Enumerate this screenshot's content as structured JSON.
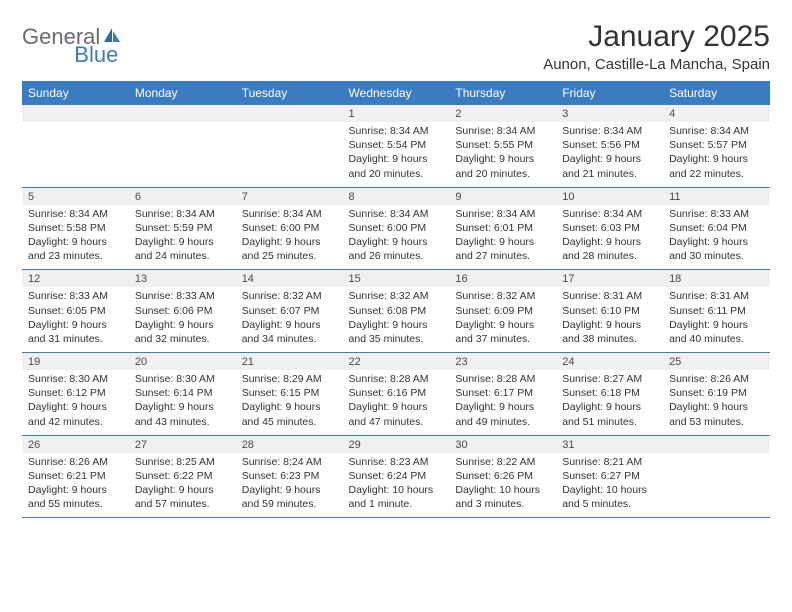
{
  "logo": {
    "word1": "General",
    "word2": "Blue"
  },
  "title": "January 2025",
  "location": "Aunon, Castille-La Mancha, Spain",
  "colors": {
    "header_bg": "#3b7bbf",
    "header_text": "#ffffff",
    "daynum_bg": "#eef0f2",
    "body_text": "#333333",
    "logo_gray": "#6b6b6b",
    "logo_blue": "#3b7bbf"
  },
  "day_headers": [
    "Sunday",
    "Monday",
    "Tuesday",
    "Wednesday",
    "Thursday",
    "Friday",
    "Saturday"
  ],
  "weeks": [
    {
      "days": [
        {
          "n": "",
          "lines": []
        },
        {
          "n": "",
          "lines": []
        },
        {
          "n": "",
          "lines": []
        },
        {
          "n": "1",
          "lines": [
            "Sunrise: 8:34 AM",
            "Sunset: 5:54 PM",
            "Daylight: 9 hours and 20 minutes."
          ]
        },
        {
          "n": "2",
          "lines": [
            "Sunrise: 8:34 AM",
            "Sunset: 5:55 PM",
            "Daylight: 9 hours and 20 minutes."
          ]
        },
        {
          "n": "3",
          "lines": [
            "Sunrise: 8:34 AM",
            "Sunset: 5:56 PM",
            "Daylight: 9 hours and 21 minutes."
          ]
        },
        {
          "n": "4",
          "lines": [
            "Sunrise: 8:34 AM",
            "Sunset: 5:57 PM",
            "Daylight: 9 hours and 22 minutes."
          ]
        }
      ]
    },
    {
      "days": [
        {
          "n": "5",
          "lines": [
            "Sunrise: 8:34 AM",
            "Sunset: 5:58 PM",
            "Daylight: 9 hours and 23 minutes."
          ]
        },
        {
          "n": "6",
          "lines": [
            "Sunrise: 8:34 AM",
            "Sunset: 5:59 PM",
            "Daylight: 9 hours and 24 minutes."
          ]
        },
        {
          "n": "7",
          "lines": [
            "Sunrise: 8:34 AM",
            "Sunset: 6:00 PM",
            "Daylight: 9 hours and 25 minutes."
          ]
        },
        {
          "n": "8",
          "lines": [
            "Sunrise: 8:34 AM",
            "Sunset: 6:00 PM",
            "Daylight: 9 hours and 26 minutes."
          ]
        },
        {
          "n": "9",
          "lines": [
            "Sunrise: 8:34 AM",
            "Sunset: 6:01 PM",
            "Daylight: 9 hours and 27 minutes."
          ]
        },
        {
          "n": "10",
          "lines": [
            "Sunrise: 8:34 AM",
            "Sunset: 6:03 PM",
            "Daylight: 9 hours and 28 minutes."
          ]
        },
        {
          "n": "11",
          "lines": [
            "Sunrise: 8:33 AM",
            "Sunset: 6:04 PM",
            "Daylight: 9 hours and 30 minutes."
          ]
        }
      ]
    },
    {
      "days": [
        {
          "n": "12",
          "lines": [
            "Sunrise: 8:33 AM",
            "Sunset: 6:05 PM",
            "Daylight: 9 hours and 31 minutes."
          ]
        },
        {
          "n": "13",
          "lines": [
            "Sunrise: 8:33 AM",
            "Sunset: 6:06 PM",
            "Daylight: 9 hours and 32 minutes."
          ]
        },
        {
          "n": "14",
          "lines": [
            "Sunrise: 8:32 AM",
            "Sunset: 6:07 PM",
            "Daylight: 9 hours and 34 minutes."
          ]
        },
        {
          "n": "15",
          "lines": [
            "Sunrise: 8:32 AM",
            "Sunset: 6:08 PM",
            "Daylight: 9 hours and 35 minutes."
          ]
        },
        {
          "n": "16",
          "lines": [
            "Sunrise: 8:32 AM",
            "Sunset: 6:09 PM",
            "Daylight: 9 hours and 37 minutes."
          ]
        },
        {
          "n": "17",
          "lines": [
            "Sunrise: 8:31 AM",
            "Sunset: 6:10 PM",
            "Daylight: 9 hours and 38 minutes."
          ]
        },
        {
          "n": "18",
          "lines": [
            "Sunrise: 8:31 AM",
            "Sunset: 6:11 PM",
            "Daylight: 9 hours and 40 minutes."
          ]
        }
      ]
    },
    {
      "days": [
        {
          "n": "19",
          "lines": [
            "Sunrise: 8:30 AM",
            "Sunset: 6:12 PM",
            "Daylight: 9 hours and 42 minutes."
          ]
        },
        {
          "n": "20",
          "lines": [
            "Sunrise: 8:30 AM",
            "Sunset: 6:14 PM",
            "Daylight: 9 hours and 43 minutes."
          ]
        },
        {
          "n": "21",
          "lines": [
            "Sunrise: 8:29 AM",
            "Sunset: 6:15 PM",
            "Daylight: 9 hours and 45 minutes."
          ]
        },
        {
          "n": "22",
          "lines": [
            "Sunrise: 8:28 AM",
            "Sunset: 6:16 PM",
            "Daylight: 9 hours and 47 minutes."
          ]
        },
        {
          "n": "23",
          "lines": [
            "Sunrise: 8:28 AM",
            "Sunset: 6:17 PM",
            "Daylight: 9 hours and 49 minutes."
          ]
        },
        {
          "n": "24",
          "lines": [
            "Sunrise: 8:27 AM",
            "Sunset: 6:18 PM",
            "Daylight: 9 hours and 51 minutes."
          ]
        },
        {
          "n": "25",
          "lines": [
            "Sunrise: 8:26 AM",
            "Sunset: 6:19 PM",
            "Daylight: 9 hours and 53 minutes."
          ]
        }
      ]
    },
    {
      "days": [
        {
          "n": "26",
          "lines": [
            "Sunrise: 8:26 AM",
            "Sunset: 6:21 PM",
            "Daylight: 9 hours and 55 minutes."
          ]
        },
        {
          "n": "27",
          "lines": [
            "Sunrise: 8:25 AM",
            "Sunset: 6:22 PM",
            "Daylight: 9 hours and 57 minutes."
          ]
        },
        {
          "n": "28",
          "lines": [
            "Sunrise: 8:24 AM",
            "Sunset: 6:23 PM",
            "Daylight: 9 hours and 59 minutes."
          ]
        },
        {
          "n": "29",
          "lines": [
            "Sunrise: 8:23 AM",
            "Sunset: 6:24 PM",
            "Daylight: 10 hours and 1 minute."
          ]
        },
        {
          "n": "30",
          "lines": [
            "Sunrise: 8:22 AM",
            "Sunset: 6:26 PM",
            "Daylight: 10 hours and 3 minutes."
          ]
        },
        {
          "n": "31",
          "lines": [
            "Sunrise: 8:21 AM",
            "Sunset: 6:27 PM",
            "Daylight: 10 hours and 5 minutes."
          ]
        },
        {
          "n": "",
          "lines": []
        }
      ]
    }
  ]
}
